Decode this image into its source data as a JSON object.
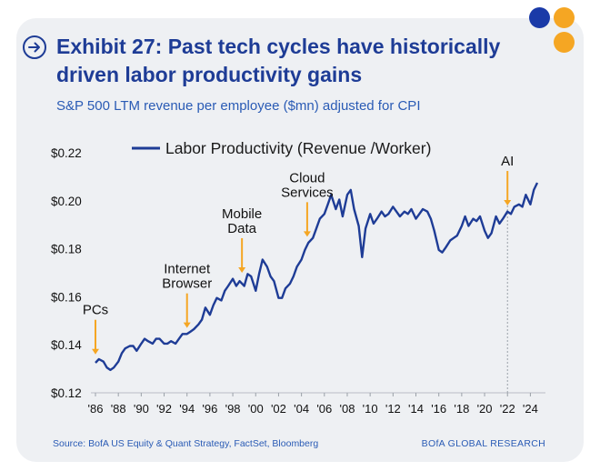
{
  "header": {
    "title": "Exhibit 27: Past tech cycles have historically driven labor productivity gains",
    "subtitle": "S&P 500 LTM revenue per employee ($mn) adjusted for CPI"
  },
  "footer": {
    "source": "Source: BofA US Equity & Quant Strategy, FactSet, Bloomberg",
    "brand": "BOfA GLOBAL RESEARCH"
  },
  "colors": {
    "title": "#1e3c96",
    "line": "#1e3c96",
    "arrow": "#f5a623",
    "dot_blue": "#1a3aa8",
    "dot_orange": "#f5a623"
  },
  "chart_data": {
    "type": "line",
    "title": "Labor Productivity (Revenue /Worker)",
    "legend": [
      "Labor Productivity (Revenue /Worker)"
    ],
    "legend_position": "top",
    "ylim": [
      0.12,
      0.22
    ],
    "xlim": [
      1986,
      2025
    ],
    "y_ticks": [
      0.12,
      0.14,
      0.16,
      0.18,
      0.2,
      0.22
    ],
    "y_tick_labels": [
      "$0.12",
      "$0.14",
      "$0.16",
      "$0.18",
      "$0.20",
      "$0.22"
    ],
    "x_ticks": [
      1986,
      1988,
      1990,
      1992,
      1994,
      1996,
      1998,
      2000,
      2002,
      2004,
      2006,
      2008,
      2010,
      2012,
      2014,
      2016,
      2018,
      2020,
      2022,
      2024
    ],
    "x_tick_labels": [
      "'86",
      "'88",
      "'90",
      "'92",
      "'94",
      "'96",
      "'98",
      "'00",
      "'02",
      "'04",
      "'06",
      "'08",
      "'10",
      "'12",
      "'14",
      "'16",
      "'18",
      "'20",
      "'22",
      "'24"
    ],
    "series": [
      {
        "name": "Labor Productivity (Revenue /Worker)",
        "x": [
          1986.0,
          1986.3,
          1986.7,
          1987.0,
          1987.3,
          1987.6,
          1988.0,
          1988.3,
          1988.6,
          1989.0,
          1989.3,
          1989.6,
          1990.0,
          1990.3,
          1990.6,
          1991.0,
          1991.3,
          1991.6,
          1992.0,
          1992.3,
          1992.6,
          1993.0,
          1993.3,
          1993.6,
          1994.0,
          1994.3,
          1994.6,
          1995.0,
          1995.3,
          1995.6,
          1996.0,
          1996.3,
          1996.6,
          1997.0,
          1997.3,
          1997.6,
          1998.0,
          1998.3,
          1998.6,
          1999.0,
          1999.3,
          1999.6,
          2000.0,
          2000.3,
          2000.6,
          2001.0,
          2001.3,
          2001.6,
          2002.0,
          2002.3,
          2002.6,
          2003.0,
          2003.3,
          2003.6,
          2004.0,
          2004.3,
          2004.6,
          2005.0,
          2005.3,
          2005.6,
          2006.0,
          2006.3,
          2006.6,
          2007.0,
          2007.3,
          2007.6,
          2008.0,
          2008.3,
          2008.6,
          2009.0,
          2009.3,
          2009.6,
          2010.0,
          2010.3,
          2010.6,
          2011.0,
          2011.3,
          2011.6,
          2012.0,
          2012.3,
          2012.6,
          2013.0,
          2013.3,
          2013.6,
          2014.0,
          2014.3,
          2014.6,
          2015.0,
          2015.3,
          2015.6,
          2016.0,
          2016.3,
          2016.6,
          2017.0,
          2017.3,
          2017.6,
          2018.0,
          2018.3,
          2018.6,
          2019.0,
          2019.3,
          2019.6,
          2020.0,
          2020.3,
          2020.6,
          2021.0,
          2021.3,
          2021.6,
          2022.0,
          2022.3,
          2022.6,
          2023.0,
          2023.3,
          2023.6,
          2024.0,
          2024.3,
          2024.6
        ],
        "values": [
          0.1325,
          0.134,
          0.133,
          0.1305,
          0.1295,
          0.1305,
          0.133,
          0.1365,
          0.1385,
          0.1395,
          0.1395,
          0.1375,
          0.1405,
          0.1425,
          0.1415,
          0.1405,
          0.1425,
          0.1425,
          0.1405,
          0.1405,
          0.1415,
          0.1405,
          0.1425,
          0.1445,
          0.1445,
          0.1455,
          0.1465,
          0.1485,
          0.1505,
          0.1555,
          0.1525,
          0.1565,
          0.1595,
          0.1585,
          0.1625,
          0.1645,
          0.1675,
          0.1645,
          0.1665,
          0.1645,
          0.1695,
          0.1685,
          0.1625,
          0.1695,
          0.1755,
          0.1725,
          0.1685,
          0.1665,
          0.1595,
          0.1595,
          0.1635,
          0.1655,
          0.1685,
          0.1725,
          0.1755,
          0.1795,
          0.1825,
          0.1845,
          0.1885,
          0.1925,
          0.1945,
          0.1985,
          0.2025,
          0.1965,
          0.2005,
          0.1935,
          0.2025,
          0.2045,
          0.1965,
          0.1895,
          0.1765,
          0.1885,
          0.1945,
          0.1905,
          0.1925,
          0.1955,
          0.1935,
          0.1945,
          0.1975,
          0.1955,
          0.1935,
          0.1955,
          0.1945,
          0.1965,
          0.1925,
          0.1945,
          0.1965,
          0.1955,
          0.1925,
          0.1875,
          0.1795,
          0.1785,
          0.1805,
          0.1835,
          0.1845,
          0.1855,
          0.1895,
          0.1935,
          0.1895,
          0.1925,
          0.1915,
          0.1935,
          0.1875,
          0.1845,
          0.1865,
          0.1935,
          0.1905,
          0.1925,
          0.1955,
          0.1945,
          0.1975,
          0.1985,
          0.1975,
          0.2025,
          0.1985,
          0.2045,
          0.2075
        ]
      }
    ],
    "annotations": [
      {
        "label": [
          "PCs"
        ],
        "x": 1986.0,
        "arrow_to": 0.1345
      },
      {
        "label": [
          "Internet",
          "Browser"
        ],
        "x": 1994.0,
        "arrow_to": 0.1455
      },
      {
        "label": [
          "Mobile",
          "Data"
        ],
        "x": 1998.8,
        "arrow_to": 0.1685
      },
      {
        "label": [
          "Cloud",
          "Services"
        ],
        "x": 2004.5,
        "arrow_to": 0.1835
      },
      {
        "label": [
          "AI"
        ],
        "x": 2022.0,
        "arrow_to": 0.1965
      }
    ],
    "reference_line_x": 2022.0
  }
}
